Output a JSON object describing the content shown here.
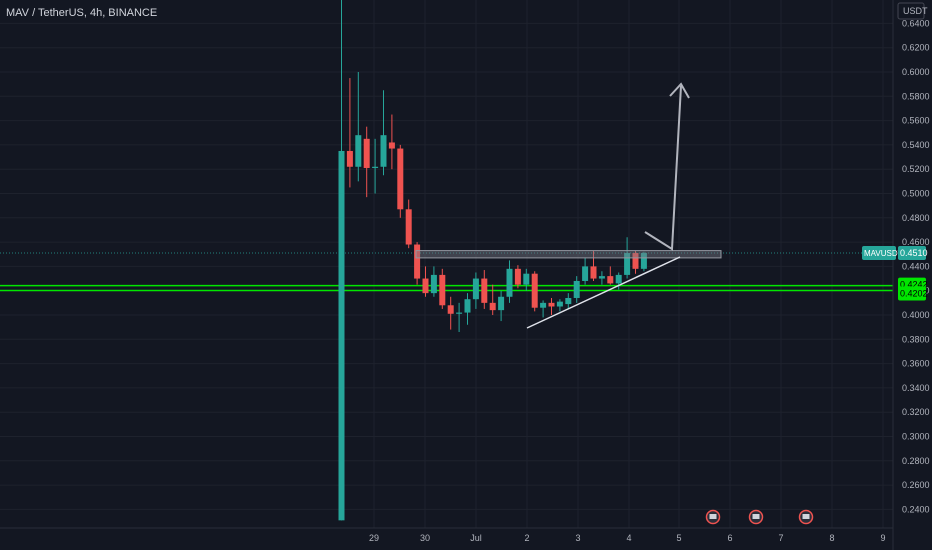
{
  "chart_data": {
    "type": "candlestick",
    "title": "MAV / TetherUS, 4h, BINANCE",
    "currency": "USDT",
    "symbol": "MAVUSDT",
    "last_price": "0.4510",
    "ylim": [
      0.23,
      0.65
    ],
    "y_ticks": [
      "0.6400",
      "0.6200",
      "0.6000",
      "0.5800",
      "0.5600",
      "0.5400",
      "0.5200",
      "0.5000",
      "0.4800",
      "0.4600",
      "0.4400",
      "0.4200",
      "0.4000",
      "0.3800",
      "0.3600",
      "0.3400",
      "0.3200",
      "0.3000",
      "0.2800",
      "0.2600",
      "0.2400"
    ],
    "x_ticks": [
      "29",
      "30",
      "Jul",
      "2",
      "3",
      "4",
      "5",
      "6",
      "7",
      "8",
      "9"
    ],
    "level_labels": [
      "0.4242",
      "0.4202"
    ],
    "colors": {
      "up": "#26a69a",
      "down": "#ef5350",
      "level": "#00e600",
      "grid": "#1e222d",
      "background": "#131722"
    },
    "candles": [
      {
        "o": 0.231,
        "h": 0.66,
        "l": 0.231,
        "c": 0.535
      },
      {
        "o": 0.535,
        "h": 0.595,
        "l": 0.505,
        "c": 0.522
      },
      {
        "o": 0.522,
        "h": 0.6,
        "l": 0.51,
        "c": 0.548
      },
      {
        "o": 0.545,
        "h": 0.555,
        "l": 0.497,
        "c": 0.521
      },
      {
        "o": 0.521,
        "h": 0.545,
        "l": 0.5,
        "c": 0.522
      },
      {
        "o": 0.522,
        "h": 0.585,
        "l": 0.515,
        "c": 0.548
      },
      {
        "o": 0.542,
        "h": 0.565,
        "l": 0.52,
        "c": 0.537
      },
      {
        "o": 0.537,
        "h": 0.54,
        "l": 0.48,
        "c": 0.487
      },
      {
        "o": 0.487,
        "h": 0.495,
        "l": 0.455,
        "c": 0.458
      },
      {
        "o": 0.458,
        "h": 0.46,
        "l": 0.425,
        "c": 0.43
      },
      {
        "o": 0.43,
        "h": 0.44,
        "l": 0.415,
        "c": 0.418
      },
      {
        "o": 0.418,
        "h": 0.44,
        "l": 0.415,
        "c": 0.433
      },
      {
        "o": 0.433,
        "h": 0.438,
        "l": 0.405,
        "c": 0.408
      },
      {
        "o": 0.408,
        "h": 0.415,
        "l": 0.388,
        "c": 0.401
      },
      {
        "o": 0.401,
        "h": 0.41,
        "l": 0.386,
        "c": 0.402
      },
      {
        "o": 0.402,
        "h": 0.418,
        "l": 0.392,
        "c": 0.413
      },
      {
        "o": 0.413,
        "h": 0.435,
        "l": 0.405,
        "c": 0.43
      },
      {
        "o": 0.43,
        "h": 0.437,
        "l": 0.405,
        "c": 0.41
      },
      {
        "o": 0.41,
        "h": 0.425,
        "l": 0.4,
        "c": 0.404
      },
      {
        "o": 0.404,
        "h": 0.42,
        "l": 0.395,
        "c": 0.415
      },
      {
        "o": 0.415,
        "h": 0.445,
        "l": 0.41,
        "c": 0.438
      },
      {
        "o": 0.438,
        "h": 0.441,
        "l": 0.422,
        "c": 0.425
      },
      {
        "o": 0.425,
        "h": 0.438,
        "l": 0.42,
        "c": 0.434
      },
      {
        "o": 0.434,
        "h": 0.436,
        "l": 0.403,
        "c": 0.406
      },
      {
        "o": 0.406,
        "h": 0.412,
        "l": 0.398,
        "c": 0.41
      },
      {
        "o": 0.41,
        "h": 0.414,
        "l": 0.4,
        "c": 0.407
      },
      {
        "o": 0.407,
        "h": 0.413,
        "l": 0.403,
        "c": 0.411
      },
      {
        "o": 0.409,
        "h": 0.418,
        "l": 0.405,
        "c": 0.414
      },
      {
        "o": 0.414,
        "h": 0.432,
        "l": 0.41,
        "c": 0.428
      },
      {
        "o": 0.428,
        "h": 0.447,
        "l": 0.425,
        "c": 0.44
      },
      {
        "o": 0.44,
        "h": 0.453,
        "l": 0.428,
        "c": 0.43
      },
      {
        "o": 0.43,
        "h": 0.436,
        "l": 0.425,
        "c": 0.432
      },
      {
        "o": 0.432,
        "h": 0.44,
        "l": 0.425,
        "c": 0.426
      },
      {
        "o": 0.426,
        "h": 0.435,
        "l": 0.421,
        "c": 0.433
      },
      {
        "o": 0.433,
        "h": 0.464,
        "l": 0.43,
        "c": 0.451
      },
      {
        "o": 0.451,
        "h": 0.453,
        "l": 0.434,
        "c": 0.438
      },
      {
        "o": 0.438,
        "h": 0.452,
        "l": 0.436,
        "c": 0.451
      }
    ],
    "annotations": [
      {
        "type": "horizontal-level",
        "price": 0.4242
      },
      {
        "type": "horizontal-level",
        "price": 0.4202
      },
      {
        "type": "resistance-zone",
        "price_top": 0.453,
        "price_bottom": 0.447
      },
      {
        "type": "ascending-trendline"
      },
      {
        "type": "projection-arrow"
      }
    ]
  }
}
